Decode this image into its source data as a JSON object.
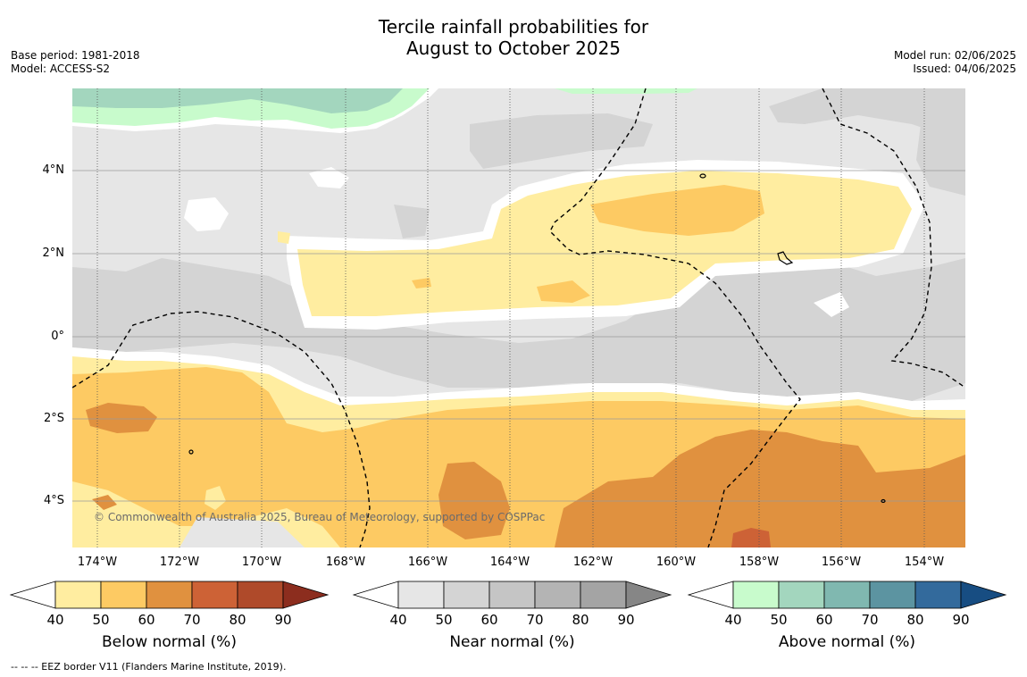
{
  "title": {
    "line1": "Tercile rainfall probabilities for",
    "line2": "August to October 2025"
  },
  "meta_left": {
    "base_period": "Base period: 1981-2018",
    "model": "Model: ACCESS-S2"
  },
  "meta_right": {
    "model_run": "Model run: 02/06/2025",
    "issued": "Issued: 04/06/2025"
  },
  "map": {
    "latitude_labels": [
      "4°N",
      "2°N",
      "0°",
      "2°S",
      "4°S"
    ],
    "longitude_labels": [
      "174°W",
      "172°W",
      "170°W",
      "168°W",
      "166°W",
      "164°W",
      "162°W",
      "160°W",
      "158°W",
      "156°W",
      "154°W"
    ],
    "copyright": "© Commonwealth of Australia 2025, Bureau of Meteorology, supported by COSPPac"
  },
  "colorbars": [
    {
      "label": "Below normal (%)",
      "ticks": [
        "40",
        "50",
        "60",
        "70",
        "80",
        "90"
      ],
      "colors": [
        "#ffeda0",
        "#fdca63",
        "#e0913f",
        "#cd6236",
        "#af4a2a",
        "#8c2d1e"
      ]
    },
    {
      "label": "Near normal (%)",
      "ticks": [
        "40",
        "50",
        "60",
        "70",
        "80",
        "90"
      ],
      "colors": [
        "#e6e6e6",
        "#d4d4d4",
        "#c5c5c5",
        "#b4b4b4",
        "#a4a4a4",
        "#868686"
      ]
    },
    {
      "label": "Above normal (%)",
      "ticks": [
        "40",
        "50",
        "60",
        "70",
        "80",
        "90"
      ],
      "colors": [
        "#c8fbcc",
        "#a3d6be",
        "#80b8b0",
        "#5c94a1",
        "#336a9c",
        "#174d82"
      ]
    }
  ],
  "footnote": "-- -- -- EEZ border V11 (Flanders Marine Institute, 2019)."
}
